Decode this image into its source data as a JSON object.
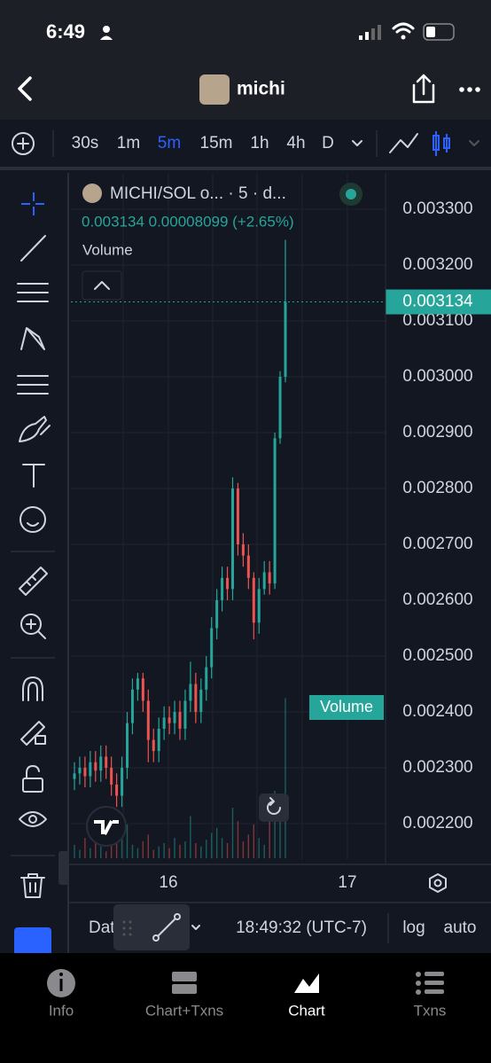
{
  "status_bar": {
    "time": "6:49"
  },
  "header": {
    "title": "michi"
  },
  "toolbar": {
    "intervals": [
      "30s",
      "1m",
      "5m",
      "15m",
      "1h",
      "4h",
      "D"
    ],
    "active_interval": 2
  },
  "chart_data": {
    "type": "candlestick",
    "title": "MICHI/SOL o... · 5 · d...",
    "subtitle": "0.003134 0.00008099 (+2.65%)",
    "volume_label": "Volume",
    "volume_badge": "Volume",
    "up_color": "#26a69a",
    "down_color": "#ef5350",
    "categories": [
      null,
      null,
      null,
      null,
      null,
      null,
      null,
      null,
      null,
      null,
      null,
      null,
      null,
      null,
      null,
      null,
      null,
      null,
      null,
      null,
      null,
      null,
      null,
      null,
      null,
      null,
      null,
      null,
      null,
      null,
      null,
      null,
      null,
      null,
      null,
      null,
      null,
      null,
      null,
      null,
      null
    ],
    "open": [
      0.00228,
      0.00229,
      0.0023,
      0.002285,
      0.00231,
      0.002295,
      0.00232,
      0.0023,
      0.00227,
      0.00225,
      0.0023,
      0.00238,
      0.00244,
      0.00246,
      0.00242,
      0.00235,
      0.00233,
      0.00237,
      0.00239,
      0.00238,
      0.0024,
      0.00237,
      0.00242,
      0.00245,
      0.0024,
      0.00244,
      0.00248,
      0.00255,
      0.0026,
      0.00264,
      0.00262,
      0.0028,
      0.0027,
      0.00268,
      0.00264,
      0.00256,
      0.00262,
      0.00265,
      0.00263,
      0.00289,
      0.003
    ],
    "high": [
      0.00231,
      0.00232,
      0.00232,
      0.00233,
      0.00233,
      0.00234,
      0.00234,
      0.00232,
      0.00229,
      0.00232,
      0.0024,
      0.00246,
      0.00247,
      0.00247,
      0.00244,
      0.00237,
      0.00239,
      0.00241,
      0.00241,
      0.00242,
      0.00242,
      0.00244,
      0.00249,
      0.00247,
      0.00246,
      0.0025,
      0.00257,
      0.00262,
      0.00266,
      0.00266,
      0.00282,
      0.00281,
      0.00272,
      0.0027,
      0.00265,
      0.00264,
      0.00267,
      0.00267,
      0.0029,
      0.00301,
      0.003245
    ],
    "low": [
      0.00226,
      0.00227,
      0.002265,
      0.002265,
      0.002275,
      0.002275,
      0.00228,
      0.00225,
      0.00223,
      0.00223,
      0.00228,
      0.00236,
      0.00242,
      0.0024,
      0.00231,
      0.00231,
      0.00231,
      0.00235,
      0.00236,
      0.00236,
      0.00235,
      0.00235,
      0.0024,
      0.00238,
      0.00238,
      0.00242,
      0.00246,
      0.00253,
      0.00258,
      0.0026,
      0.0026,
      0.00268,
      0.00266,
      0.00262,
      0.00253,
      0.00254,
      0.00261,
      0.00261,
      0.00262,
      0.00288,
      0.00299
    ],
    "close": [
      0.00229,
      0.0023,
      0.002285,
      0.00231,
      0.002295,
      0.00232,
      0.0023,
      0.00227,
      0.00225,
      0.0023,
      0.00238,
      0.00244,
      0.00246,
      0.00242,
      0.00235,
      0.00233,
      0.00237,
      0.00239,
      0.00238,
      0.0024,
      0.00237,
      0.00242,
      0.00245,
      0.0024,
      0.00244,
      0.00248,
      0.00255,
      0.0026,
      0.00264,
      0.00262,
      0.0028,
      0.0027,
      0.00268,
      0.00264,
      0.00256,
      0.00262,
      0.00265,
      0.00263,
      0.00289,
      0.003,
      0.003134
    ],
    "volume": [
      8,
      5,
      12,
      6,
      10,
      7,
      4,
      9,
      15,
      11,
      20,
      8,
      6,
      10,
      14,
      5,
      7,
      9,
      6,
      12,
      8,
      10,
      25,
      9,
      7,
      11,
      15,
      18,
      12,
      9,
      30,
      22,
      10,
      14,
      20,
      12,
      8,
      25,
      40,
      35,
      95
    ],
    "volume_lim": [
      0,
      100
    ],
    "ylim": [
      0.002135,
      0.003365
    ],
    "yticks": [
      {
        "value": 0.0022,
        "label": "0.002200"
      },
      {
        "value": 0.0023,
        "label": "0.002300"
      },
      {
        "value": 0.0024,
        "label": "0.002400"
      },
      {
        "value": 0.0025,
        "label": "0.002500"
      },
      {
        "value": 0.0026,
        "label": "0.002600"
      },
      {
        "value": 0.0027,
        "label": "0.002700"
      },
      {
        "value": 0.0028,
        "label": "0.002800"
      },
      {
        "value": 0.0029,
        "label": "0.002900"
      },
      {
        "value": 0.003,
        "label": "0.003000"
      },
      {
        "value": 0.0031,
        "label": "0.003100"
      },
      {
        "value": 0.0032,
        "label": "0.003200"
      },
      {
        "value": 0.0033,
        "label": "0.003300"
      }
    ],
    "last_price": 0.003134,
    "x_labels": [
      "16",
      "17"
    ],
    "grid": true
  },
  "bottom_bar": {
    "date_button": "Dat",
    "time": "18:49:32 (UTC-7)",
    "log": "log",
    "auto": "auto"
  },
  "tabs": {
    "items": [
      "Info",
      "Chart+Txns",
      "Chart",
      "Txns"
    ],
    "active": 2
  }
}
